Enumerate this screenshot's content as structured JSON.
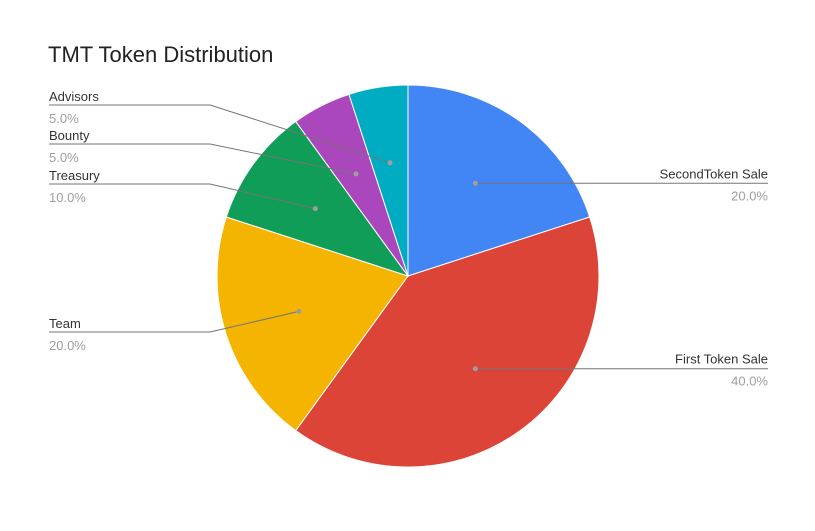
{
  "title": "TMT Token Distribution",
  "chart_data": {
    "type": "pie",
    "title": "TMT Token Distribution",
    "slices": [
      {
        "label": "SecondToken Sale",
        "value": 20.0,
        "pct_text": "20.0%",
        "color": "#4285F4",
        "side": "right"
      },
      {
        "label": "First Token Sale",
        "value": 40.0,
        "pct_text": "40.0%",
        "color": "#DB4437",
        "side": "right"
      },
      {
        "label": "Team",
        "value": 20.0,
        "pct_text": "20.0%",
        "color": "#F4B400",
        "side": "left"
      },
      {
        "label": "Treasury",
        "value": 10.0,
        "pct_text": "10.0%",
        "color": "#0F9D58",
        "side": "left"
      },
      {
        "label": "Bounty",
        "value": 5.0,
        "pct_text": "5.0%",
        "color": "#AB47BC",
        "side": "left"
      },
      {
        "label": "Advisors",
        "value": 5.0,
        "pct_text": "5.0%",
        "color": "#00ACC1",
        "side": "left"
      }
    ],
    "start_angle": "12 o'clock",
    "direction": "clockwise",
    "legend": "labels-with-leader-lines"
  }
}
